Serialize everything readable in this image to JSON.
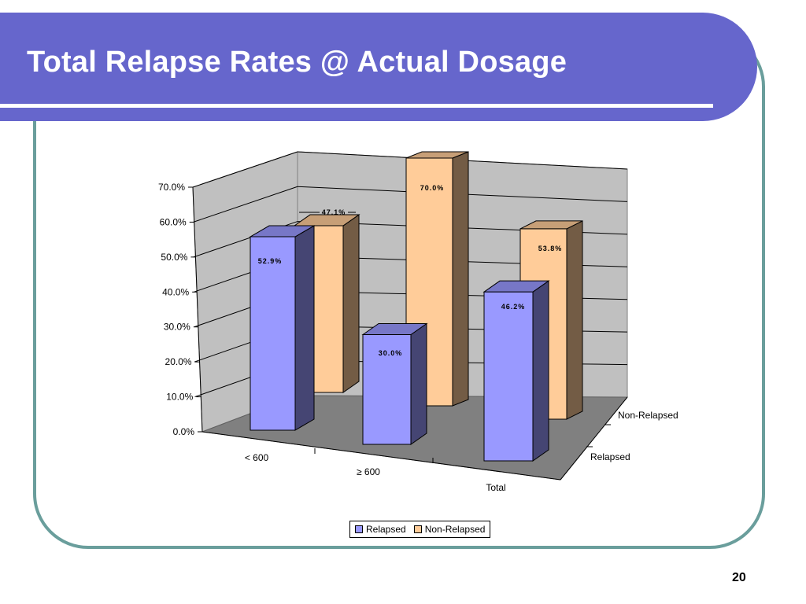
{
  "slide": {
    "title": "Total Relapse Rates @ Actual Dosage",
    "page_number": "20"
  },
  "colors": {
    "title_bar": "#6666cc",
    "frame_border": "#6a9e9c",
    "relapsed": "#9999ff",
    "non_relapsed": "#ffcc99"
  },
  "chart_data": {
    "type": "bar",
    "categories": [
      "< 600",
      "≥ 600",
      "Total"
    ],
    "series": [
      {
        "name": "Relapsed",
        "values": [
          52.9,
          30.0,
          46.2
        ],
        "labels": [
          "52.9%",
          "30.0%",
          "46.2%"
        ]
      },
      {
        "name": "Non-Relapsed",
        "values": [
          47.1,
          70.0,
          53.8
        ],
        "labels": [
          "47.1%",
          "70.0%",
          "53.8%"
        ]
      }
    ],
    "y_ticks": [
      "0.0%",
      "10.0%",
      "20.0%",
      "30.0%",
      "40.0%",
      "50.0%",
      "60.0%",
      "70.0%"
    ],
    "ylim": [
      0,
      70
    ],
    "depth_labels": [
      "Relapsed",
      "Non-Relapsed"
    ],
    "legend": {
      "position": "bottom",
      "entries": [
        "Relapsed",
        "Non-Relapsed"
      ]
    },
    "grid": true,
    "style": "3d-column"
  }
}
